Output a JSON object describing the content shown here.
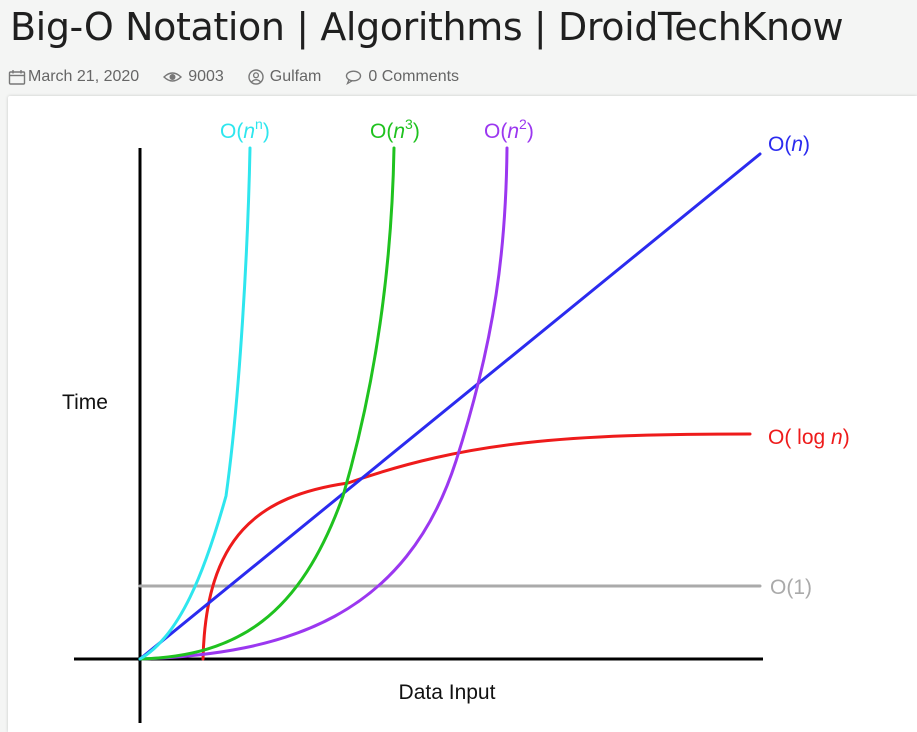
{
  "page": {
    "title": "Big-O Notation | Algorithms | DroidTechKnow"
  },
  "meta": {
    "date": "March 21, 2020",
    "views": "9003",
    "author": "Gulfam",
    "comments": "0 Comments",
    "icons": [
      "calendar-icon",
      "eye-icon",
      "user-circle-icon",
      "comment-icon"
    ]
  },
  "chart_data": {
    "type": "line",
    "title": "",
    "xlabel": "Data Input",
    "ylabel": "Time",
    "grid": false,
    "legend": "inline labels at end of each curve",
    "series": [
      {
        "name": "O(n^n)",
        "label_base": "O(",
        "label_var": "n",
        "label_sup": "n",
        "label_tail": ")",
        "color": "#2ee6ee"
      },
      {
        "name": "O(n^3)",
        "label_base": "O(",
        "label_var": "n",
        "label_sup": "3",
        "label_tail": ")",
        "color": "#1fc21f"
      },
      {
        "name": "O(n^2)",
        "label_base": "O(",
        "label_var": "n",
        "label_sup": "2",
        "label_tail": ")",
        "color": "#9b37f0"
      },
      {
        "name": "O(n)",
        "label_base": "O(",
        "label_var": "n",
        "label_sup": "",
        "label_tail": ")",
        "color": "#2b2bef"
      },
      {
        "name": "O( log n)",
        "label_base": "O( log ",
        "label_var": "n",
        "label_sup": "",
        "label_tail": ")",
        "color": "#ee1b1b"
      },
      {
        "name": "O(1)",
        "label_base": "O(1)",
        "label_var": "",
        "label_sup": "",
        "label_tail": "",
        "color": "#aaaaaa"
      }
    ]
  }
}
